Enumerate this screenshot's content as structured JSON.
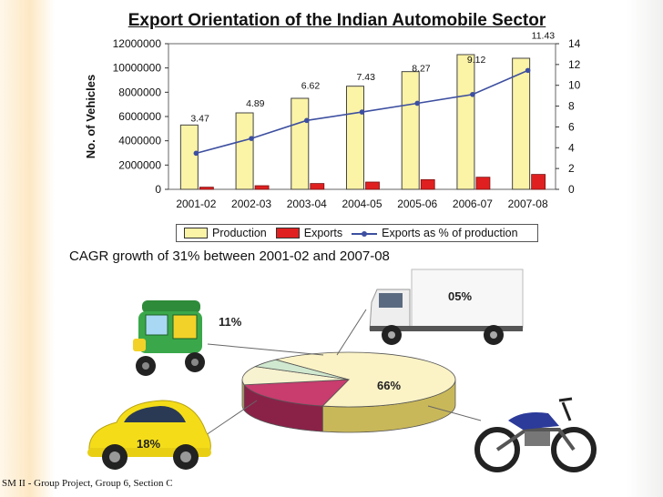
{
  "slide": {
    "title": "Export Orientation of the Indian Automobile Sector",
    "cagr_text": "CAGR growth of 31% between 2001-02 and 2007-08",
    "footer": "SM II - Group Project, Group 6, Section C"
  },
  "chart_data": [
    {
      "type": "bar",
      "title": "Export Orientation of the Indian Automobile Sector",
      "categories": [
        "2001-02",
        "2002-03",
        "2003-04",
        "2004-05",
        "2005-06",
        "2006-07",
        "2007-08"
      ],
      "ylabel": "No. of Vehicles",
      "ylim": [
        0,
        12000000
      ],
      "yticks": [
        "0",
        "2000000",
        "4000000",
        "6000000",
        "8000000",
        "10000000",
        "12000000"
      ],
      "y2lim": [
        0,
        14
      ],
      "y2ticks": [
        "0",
        "2",
        "4",
        "6",
        "8",
        "10",
        "12",
        "14"
      ],
      "series": [
        {
          "name": "Production",
          "kind": "bar",
          "color": "#fbf3a6",
          "values": [
            5300000,
            6300000,
            7500000,
            8500000,
            9700000,
            11100000,
            10800000
          ]
        },
        {
          "name": "Exports",
          "kind": "bar",
          "color": "#e02020",
          "values": [
            180000,
            300000,
            480000,
            600000,
            800000,
            1000000,
            1230000
          ]
        },
        {
          "name": "Exports as % of production",
          "kind": "line",
          "axis": "right",
          "color": "#3d4fa0",
          "values": [
            3.47,
            4.89,
            6.62,
            7.43,
            8.27,
            9.12,
            11.43
          ],
          "labels": [
            "3.47",
            "4.89",
            "6.62",
            "7.43",
            "8.27",
            "9.12",
            "11.43"
          ]
        }
      ],
      "legend": "bottom",
      "grid": false
    },
    {
      "type": "pie",
      "style": "3d",
      "slices": [
        {
          "label": "66%",
          "value": 66,
          "color": "#fbf3c6",
          "vehicle": "motorcycle"
        },
        {
          "label": "18%",
          "value": 18,
          "color": "#c83c6e",
          "vehicle": "car"
        },
        {
          "label": "11%",
          "value": 11,
          "color": "#f7f2cf",
          "vehicle": "auto-rickshaw"
        },
        {
          "label": "05%",
          "value": 5,
          "color": "#cfe8cf",
          "vehicle": "truck"
        }
      ]
    }
  ]
}
